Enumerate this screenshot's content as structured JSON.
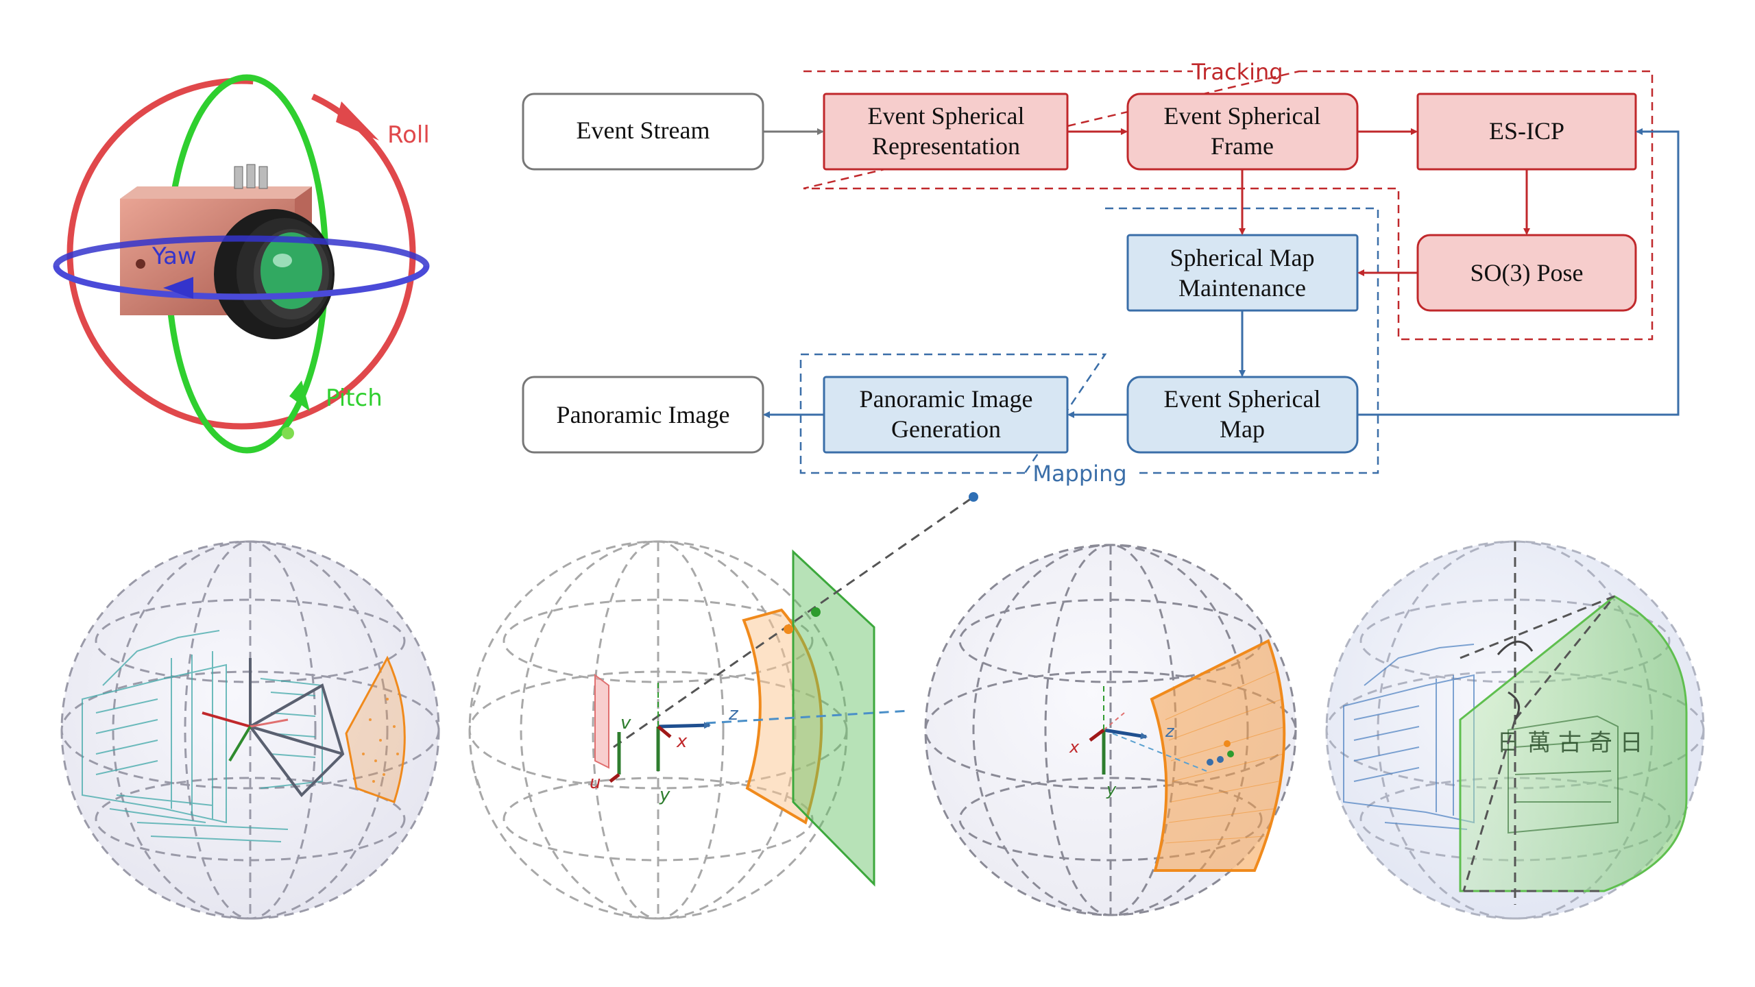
{
  "colors": {
    "tracking": "#c0282b",
    "tracking_fill": "#f6cdcc",
    "mapping": "#3a6ea8",
    "mapping_fill": "#d7e6f3",
    "neutral": "#777777",
    "roll": "#e0484b",
    "pitch": "#2fcf2f",
    "yaw": "#3434cc",
    "orange": "#f08a1c",
    "green_plane": "#3ca83c"
  },
  "rotation": {
    "roll": "Roll",
    "yaw": "Yaw",
    "pitch": "Pitch"
  },
  "groups": {
    "tracking": "Tracking",
    "mapping": "Mapping"
  },
  "blocks": {
    "event_stream": "Event Stream",
    "esr": [
      "Event Spherical",
      "Representation"
    ],
    "esf": [
      "Event Spherical",
      "Frame"
    ],
    "esicp": "ES-ICP",
    "so3": "SO(3) Pose",
    "smm": [
      "Spherical Map",
      "Maintenance"
    ],
    "esm": [
      "Event Spherical",
      "Map"
    ],
    "pig": [
      "Panoramic Image",
      "Generation"
    ],
    "pano": "Panoramic Image"
  },
  "axes": {
    "x": "x",
    "y": "y",
    "z": "z",
    "u": "u",
    "v": "v"
  },
  "ground_text": "日 萬 古 奇 日"
}
